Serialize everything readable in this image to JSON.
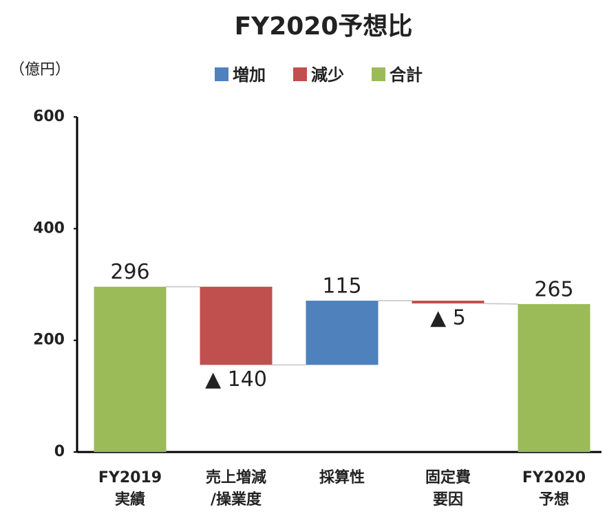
{
  "chart_data": {
    "type": "waterfall",
    "title": "FY2020予想比",
    "y_label": "（億円）",
    "categories": [
      "FY2019\n実績",
      "売上増減\n/操業度",
      "採算性",
      "固定費\n要因",
      "FY2020\n予想"
    ],
    "series": [
      {
        "name": "増加",
        "color": "#4f81bd",
        "values": [
          null,
          null,
          115,
          null,
          null
        ]
      },
      {
        "name": "減少",
        "color": "#c0504d",
        "values": [
          null,
          -140,
          null,
          -5,
          null
        ],
        "value_labels": [
          null,
          "▲ 140",
          null,
          "▲ 5",
          null
        ]
      },
      {
        "name": "合計",
        "color": "#9bbb59",
        "values": [
          296,
          null,
          null,
          null,
          265
        ]
      }
    ],
    "ylim": [
      0,
      600
    ],
    "yticks": [
      0,
      200,
      400,
      600
    ],
    "grid": false
  }
}
